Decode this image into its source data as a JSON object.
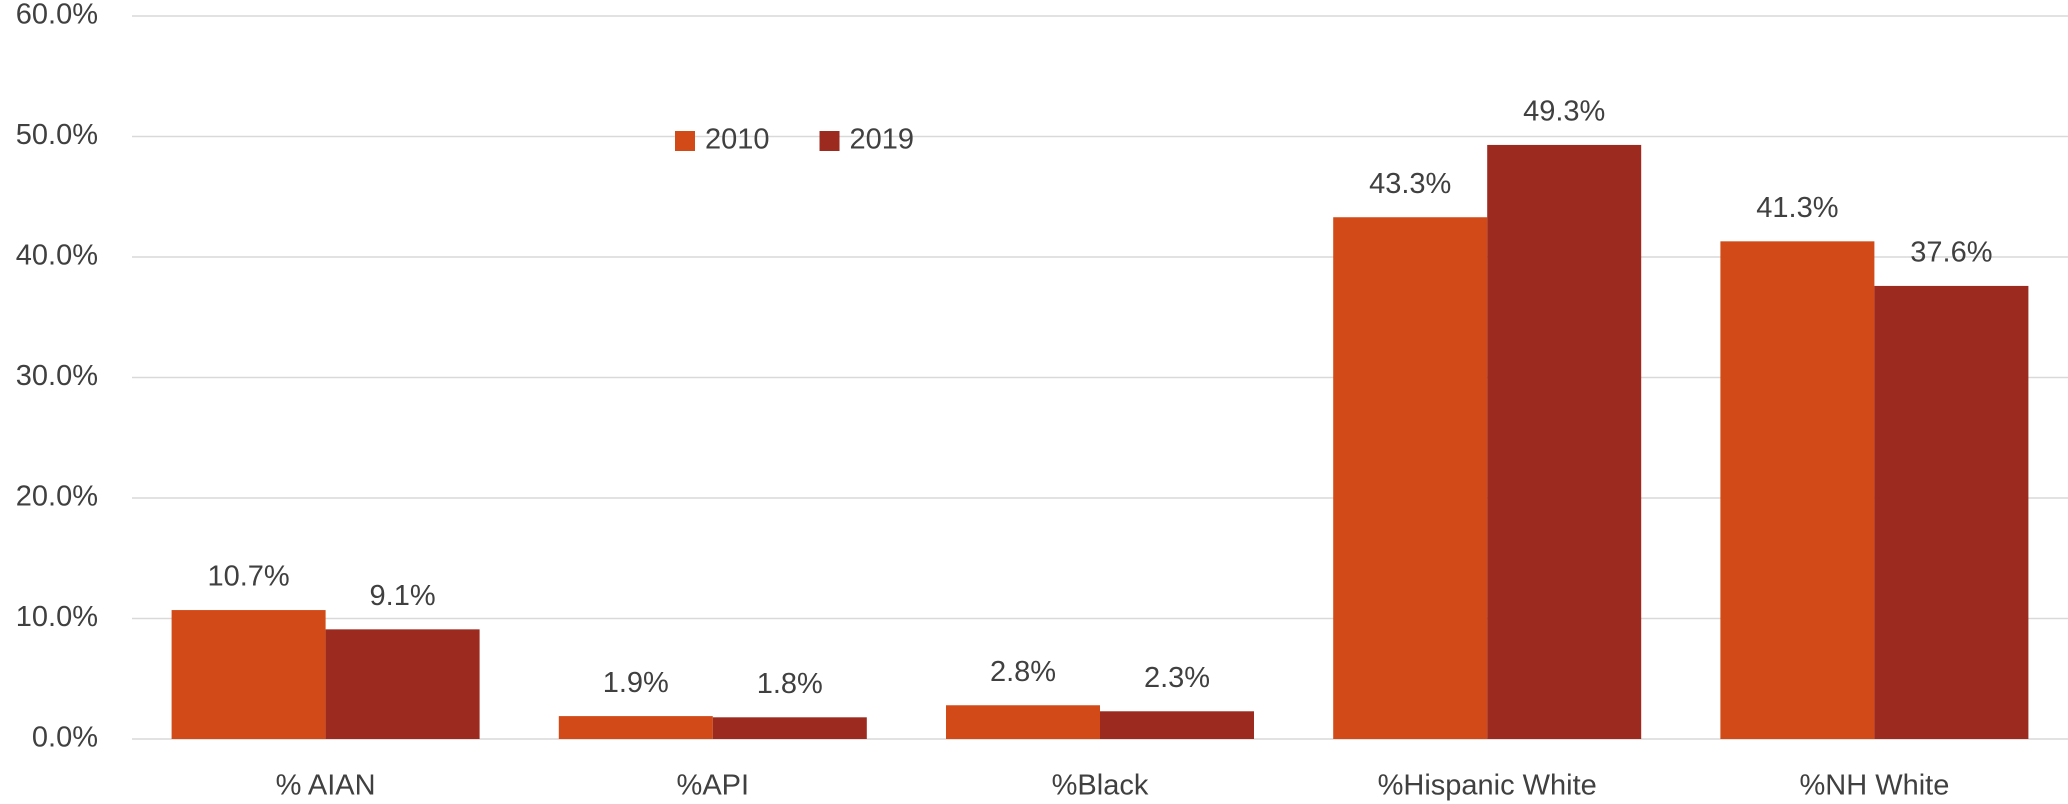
{
  "chart_data": {
    "type": "bar",
    "categories": [
      "% AIAN",
      "%API",
      "%Black",
      "%Hispanic White",
      "%NH White"
    ],
    "series": [
      {
        "name": "2010",
        "color": "#d24a18",
        "values": [
          10.7,
          1.9,
          2.8,
          43.3,
          41.3
        ],
        "value_labels": [
          "10.7%",
          "1.9%",
          "2.8%",
          "43.3%",
          "41.3%"
        ]
      },
      {
        "name": "2019",
        "color": "#9c2a1f",
        "values": [
          9.1,
          1.8,
          2.3,
          49.3,
          37.6
        ],
        "value_labels": [
          "9.1%",
          "1.8%",
          "2.3%",
          "49.3%",
          "37.6%"
        ]
      }
    ],
    "ylim": [
      0,
      60
    ],
    "yticks": [
      {
        "value": 0,
        "label": "0.0%"
      },
      {
        "value": 10,
        "label": "10.0%"
      },
      {
        "value": 20,
        "label": "20.0%"
      },
      {
        "value": 30,
        "label": "30.0%"
      },
      {
        "value": 40,
        "label": "40.0%"
      },
      {
        "value": 50,
        "label": "50.0%"
      },
      {
        "value": 60,
        "label": "60.0%"
      }
    ],
    "grid": true,
    "legend": "top"
  }
}
